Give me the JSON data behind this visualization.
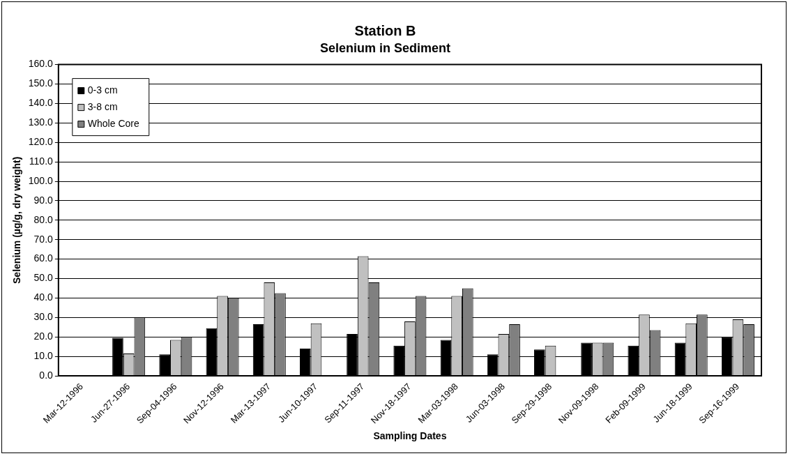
{
  "chart_data": {
    "type": "bar",
    "title": "Station B",
    "subtitle": "Selenium in Sediment",
    "xlabel": "Sampling Dates",
    "ylabel": "Selenium (µg/g, dry weight)",
    "categories": [
      "Mar-12-1996",
      "Jun-27-1996",
      "Sep-04-1996",
      "Nov-12-1996",
      "Mar-13-1997",
      "Jun-10-1997",
      "Sep-11-1997",
      "Nov-18-1997",
      "Mar-03-1998",
      "Jun-03-1998",
      "Sep-29-1998",
      "Nov-09-1998",
      "Feb-09-1999",
      "Jun-18-1999",
      "Sep-16-1999"
    ],
    "series": [
      {
        "name": "0-3 cm",
        "color": "#000000",
        "values": [
          0,
          19.5,
          11,
          24.5,
          26.5,
          14,
          21.5,
          15.5,
          18.5,
          11,
          13.5,
          17,
          15.5,
          17,
          20
        ]
      },
      {
        "name": "3-8 cm",
        "color": "#c0c0c0",
        "values": [
          0,
          11.5,
          18.5,
          41,
          48,
          27,
          61.5,
          28,
          41,
          21.5,
          15.5,
          17,
          31.5,
          27,
          29
        ]
      },
      {
        "name": "Whole Core",
        "color": "#808080",
        "values": [
          0,
          30,
          20,
          40,
          42.5,
          0,
          48,
          41,
          45,
          26.5,
          0,
          17,
          23.5,
          31.5,
          26.5
        ]
      }
    ],
    "ylim": [
      0,
      160
    ],
    "yticks": [
      {
        "value": 0,
        "label": "0.0"
      },
      {
        "value": 10,
        "label": "10.0"
      },
      {
        "value": 20,
        "label": "20.0"
      },
      {
        "value": 30,
        "label": "30.0"
      },
      {
        "value": 40,
        "label": "40.0"
      },
      {
        "value": 50,
        "label": "50.0"
      },
      {
        "value": 60,
        "label": "60.0"
      },
      {
        "value": 70,
        "label": "70.0"
      },
      {
        "value": 80,
        "label": "80.0"
      },
      {
        "value": 90,
        "label": "90.0"
      },
      {
        "value": 100,
        "label": "100.0"
      },
      {
        "value": 110,
        "label": "110.0"
      },
      {
        "value": 120,
        "label": "120.0"
      },
      {
        "value": 130,
        "label": "130.0"
      },
      {
        "value": 140,
        "label": "140.0"
      },
      {
        "value": 150,
        "label": "150.0"
      },
      {
        "value": 160,
        "label": "160.0"
      }
    ],
    "grid": "y",
    "legend": "top left"
  }
}
